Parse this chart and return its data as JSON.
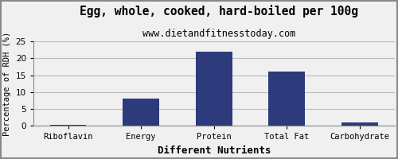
{
  "title": "Egg, whole, cooked, hard-boiled per 100g",
  "subtitle": "www.dietandfitnesstoday.com",
  "xlabel": "Different Nutrients",
  "ylabel": "Percentage of RDH (%)",
  "categories": [
    "Riboflavin",
    "Energy",
    "Protein",
    "Total Fat",
    "Carbohydrate"
  ],
  "values": [
    0.27,
    8.1,
    22.0,
    16.1,
    1.0
  ],
  "bar_color": "#2d3a7c",
  "ylim": [
    0,
    25
  ],
  "yticks": [
    0,
    5,
    10,
    15,
    20,
    25
  ],
  "background_color": "#f0f0f0",
  "plot_bg_color": "#f0f0f0",
  "title_fontsize": 10.5,
  "subtitle_fontsize": 8.5,
  "xlabel_fontsize": 9,
  "ylabel_fontsize": 7.5,
  "tick_fontsize": 7.5,
  "xlabel_fontweight": "bold",
  "grid_color": "#bbbbbb",
  "border_color": "#888888"
}
